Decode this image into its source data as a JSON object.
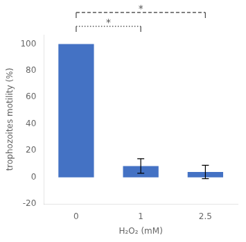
{
  "chart_data": {
    "type": "bar",
    "categories": [
      "0",
      "1",
      "2.5"
    ],
    "values": [
      100,
      8.5,
      4.0
    ],
    "errors": [
      0,
      5.5,
      5.0
    ],
    "color": "#4472C4",
    "xlabel": "H₂O₂ (mM)",
    "ylabel": "trophozoites motility (%)",
    "ylim": [
      -20,
      107
    ],
    "yticks": [
      -20,
      0,
      20,
      40,
      60,
      80,
      100
    ],
    "grid": false,
    "annotations": [
      {
        "text": "*",
        "from": "0",
        "to": "2.5",
        "line_style": "dashed",
        "color": "#555555"
      },
      {
        "text": "*",
        "from": "0",
        "to": "1",
        "line_style": "dotted",
        "color": "#555555"
      }
    ]
  }
}
